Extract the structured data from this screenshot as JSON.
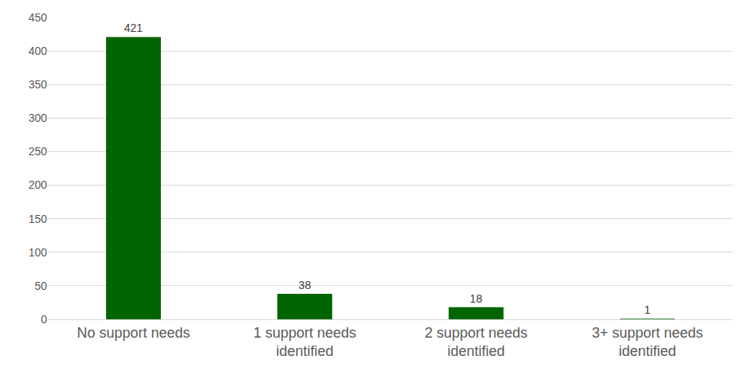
{
  "chart_data": {
    "type": "bar",
    "categories": [
      "No support needs",
      "1 support needs identified",
      "2 support needs identified",
      "3+ support needs identified"
    ],
    "values": [
      421,
      38,
      18,
      1
    ],
    "color": "#006400",
    "ylim": [
      0,
      450
    ],
    "yticks": [
      0,
      50,
      100,
      150,
      200,
      250,
      300,
      350,
      400,
      450
    ],
    "grid": true,
    "data_labels": true
  }
}
